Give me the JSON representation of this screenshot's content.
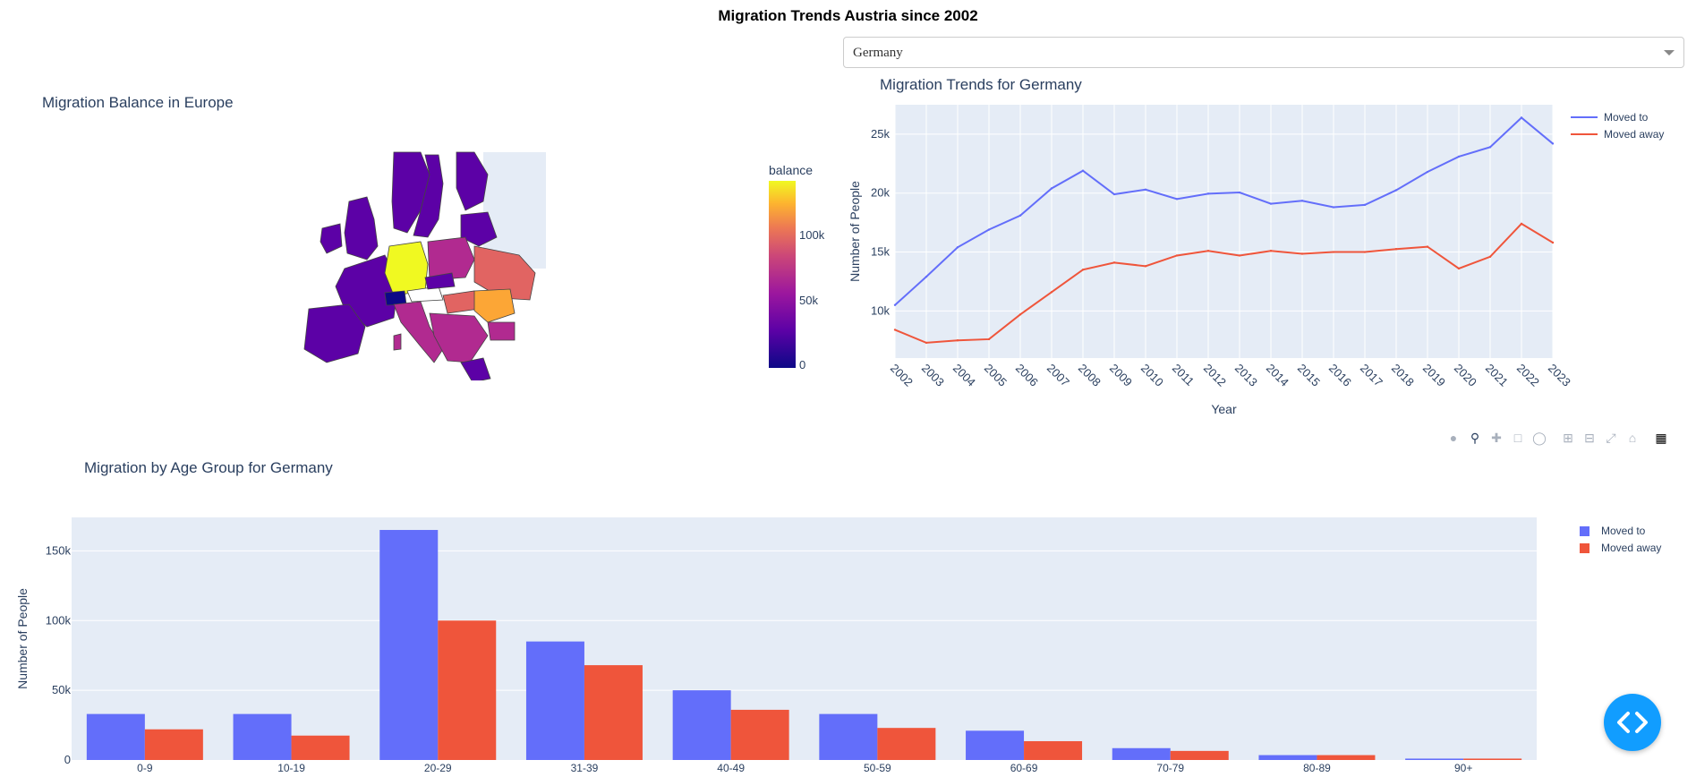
{
  "page": {
    "title": "Migration Trends Austria since 2002"
  },
  "selector": {
    "value": "Germany"
  },
  "map": {
    "title": "Migration Balance in Europe",
    "colorbar": {
      "title": "balance",
      "ticks": [
        "100k",
        "50k",
        "0"
      ]
    },
    "colors": {
      "max": "#f0f921",
      "high": "#fca636",
      "mid": "#e16462",
      "low": "#b12a90",
      "base": "#5c01a6",
      "min": "#0d0887"
    }
  },
  "modebar": {
    "icons": [
      "camera-icon",
      "zoom-icon",
      "pan-icon",
      "box-select-icon",
      "lasso-icon",
      "zoom-in-icon",
      "zoom-out-icon",
      "autoscale-icon",
      "reset-axes-icon",
      "plotly-logo-icon"
    ]
  },
  "chart_data": [
    {
      "type": "line",
      "title": "Migration Trends for Germany",
      "xlabel": "Year",
      "ylabel": "Number of People",
      "x": [
        "2002",
        "2003",
        "2004",
        "2005",
        "2006",
        "2007",
        "2008",
        "2009",
        "2010",
        "2011",
        "2012",
        "2013",
        "2014",
        "2015",
        "2016",
        "2017",
        "2018",
        "2019",
        "2020",
        "2021",
        "2022",
        "2023"
      ],
      "ylim": [
        6000,
        27500
      ],
      "yticks": [
        {
          "value": 10000,
          "label": "10k"
        },
        {
          "value": 15000,
          "label": "15k"
        },
        {
          "value": 20000,
          "label": "20k"
        },
        {
          "value": 25000,
          "label": "25k"
        }
      ],
      "legend": "top-right",
      "series": [
        {
          "name": "Moved to",
          "color": "#636efa",
          "values": [
            10500,
            12900,
            15400,
            16900,
            18100,
            20400,
            21900,
            19900,
            20300,
            19500,
            19950,
            20050,
            19100,
            19350,
            18800,
            19000,
            20250,
            21800,
            23100,
            23900,
            26400,
            24200
          ]
        },
        {
          "name": "Moved away",
          "color": "#ef553b",
          "values": [
            8400,
            7300,
            7500,
            7600,
            9700,
            11600,
            13500,
            14100,
            13800,
            14700,
            15100,
            14700,
            15100,
            14850,
            15000,
            15000,
            15250,
            15450,
            13600,
            14600,
            17400,
            15800
          ]
        }
      ]
    },
    {
      "type": "bar",
      "title": "Migration by Age Group for Germany",
      "ylabel": "Number of People",
      "categories": [
        "0-9",
        "10-19",
        "20-29",
        "31-39",
        "40-49",
        "50-59",
        "60-69",
        "70-79",
        "80-89",
        "90+"
      ],
      "ylim": [
        0,
        174000
      ],
      "yticks": [
        {
          "value": 0,
          "label": "0"
        },
        {
          "value": 50000,
          "label": "50k"
        },
        {
          "value": 100000,
          "label": "100k"
        },
        {
          "value": 150000,
          "label": "150k"
        }
      ],
      "legend": "top-right",
      "series": [
        {
          "name": "Moved to",
          "color": "#636efa",
          "values": [
            33000,
            33000,
            165000,
            85000,
            50000,
            33000,
            21000,
            8500,
            3500,
            1000
          ]
        },
        {
          "name": "Moved away",
          "color": "#ef553b",
          "values": [
            22000,
            17500,
            100000,
            68000,
            36000,
            23000,
            13500,
            6500,
            3500,
            1000
          ]
        }
      ]
    }
  ]
}
